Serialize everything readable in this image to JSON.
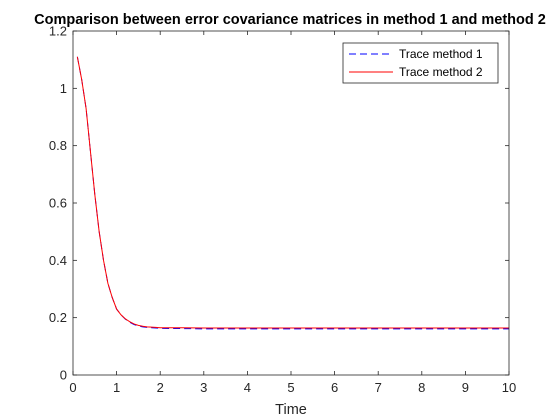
{
  "chart_data": {
    "type": "line",
    "title": "Comparison between error covariance matrices in method 1 and method 2",
    "xlabel": "Time",
    "ylabel": "",
    "xlim": [
      0,
      10
    ],
    "ylim": [
      0,
      1.2
    ],
    "x_ticks": [
      0,
      1,
      2,
      3,
      4,
      5,
      6,
      7,
      8,
      9,
      10
    ],
    "y_ticks": [
      0,
      0.2,
      0.4,
      0.6,
      0.8,
      1,
      1.2
    ],
    "x_tick_labels": [
      "0",
      "1",
      "2",
      "3",
      "4",
      "5",
      "6",
      "7",
      "8",
      "9",
      "10"
    ],
    "y_tick_labels": [
      "0",
      "0.2",
      "0.4",
      "0.6",
      "0.8",
      "1",
      "1.2"
    ],
    "grid": false,
    "legend": {
      "placement": "top-right"
    },
    "series": [
      {
        "name": "Trace method 1",
        "color": "#0000FF",
        "style": "dashed",
        "x": [
          0.1,
          0.2,
          0.3,
          0.4,
          0.5,
          0.6,
          0.7,
          0.8,
          0.9,
          1.0,
          1.1,
          1.2,
          1.3,
          1.4,
          1.5,
          1.6,
          1.7,
          1.8,
          1.9,
          2.0,
          2.2,
          2.5,
          3,
          4,
          5,
          6,
          7,
          8,
          9,
          10
        ],
        "y": [
          1.11,
          1.03,
          0.93,
          0.78,
          0.63,
          0.5,
          0.4,
          0.32,
          0.27,
          0.23,
          0.21,
          0.195,
          0.184,
          0.176,
          0.171,
          0.168,
          0.166,
          0.165,
          0.164,
          0.163,
          0.162,
          0.162,
          0.161,
          0.161,
          0.161,
          0.161,
          0.161,
          0.161,
          0.161,
          0.161
        ]
      },
      {
        "name": "Trace method 2",
        "color": "#FF0000",
        "style": "solid",
        "x": [
          0.1,
          0.2,
          0.3,
          0.4,
          0.5,
          0.6,
          0.7,
          0.8,
          0.9,
          1.0,
          1.1,
          1.2,
          1.3,
          1.4,
          1.5,
          1.6,
          1.7,
          1.8,
          1.9,
          2.0,
          2.2,
          2.5,
          3,
          4,
          5,
          6,
          7,
          8,
          9,
          10
        ],
        "y": [
          1.11,
          1.03,
          0.93,
          0.78,
          0.63,
          0.5,
          0.4,
          0.32,
          0.27,
          0.23,
          0.21,
          0.196,
          0.186,
          0.178,
          0.173,
          0.17,
          0.168,
          0.167,
          0.166,
          0.165,
          0.165,
          0.165,
          0.164,
          0.164,
          0.164,
          0.164,
          0.164,
          0.164,
          0.164,
          0.164
        ]
      }
    ]
  }
}
